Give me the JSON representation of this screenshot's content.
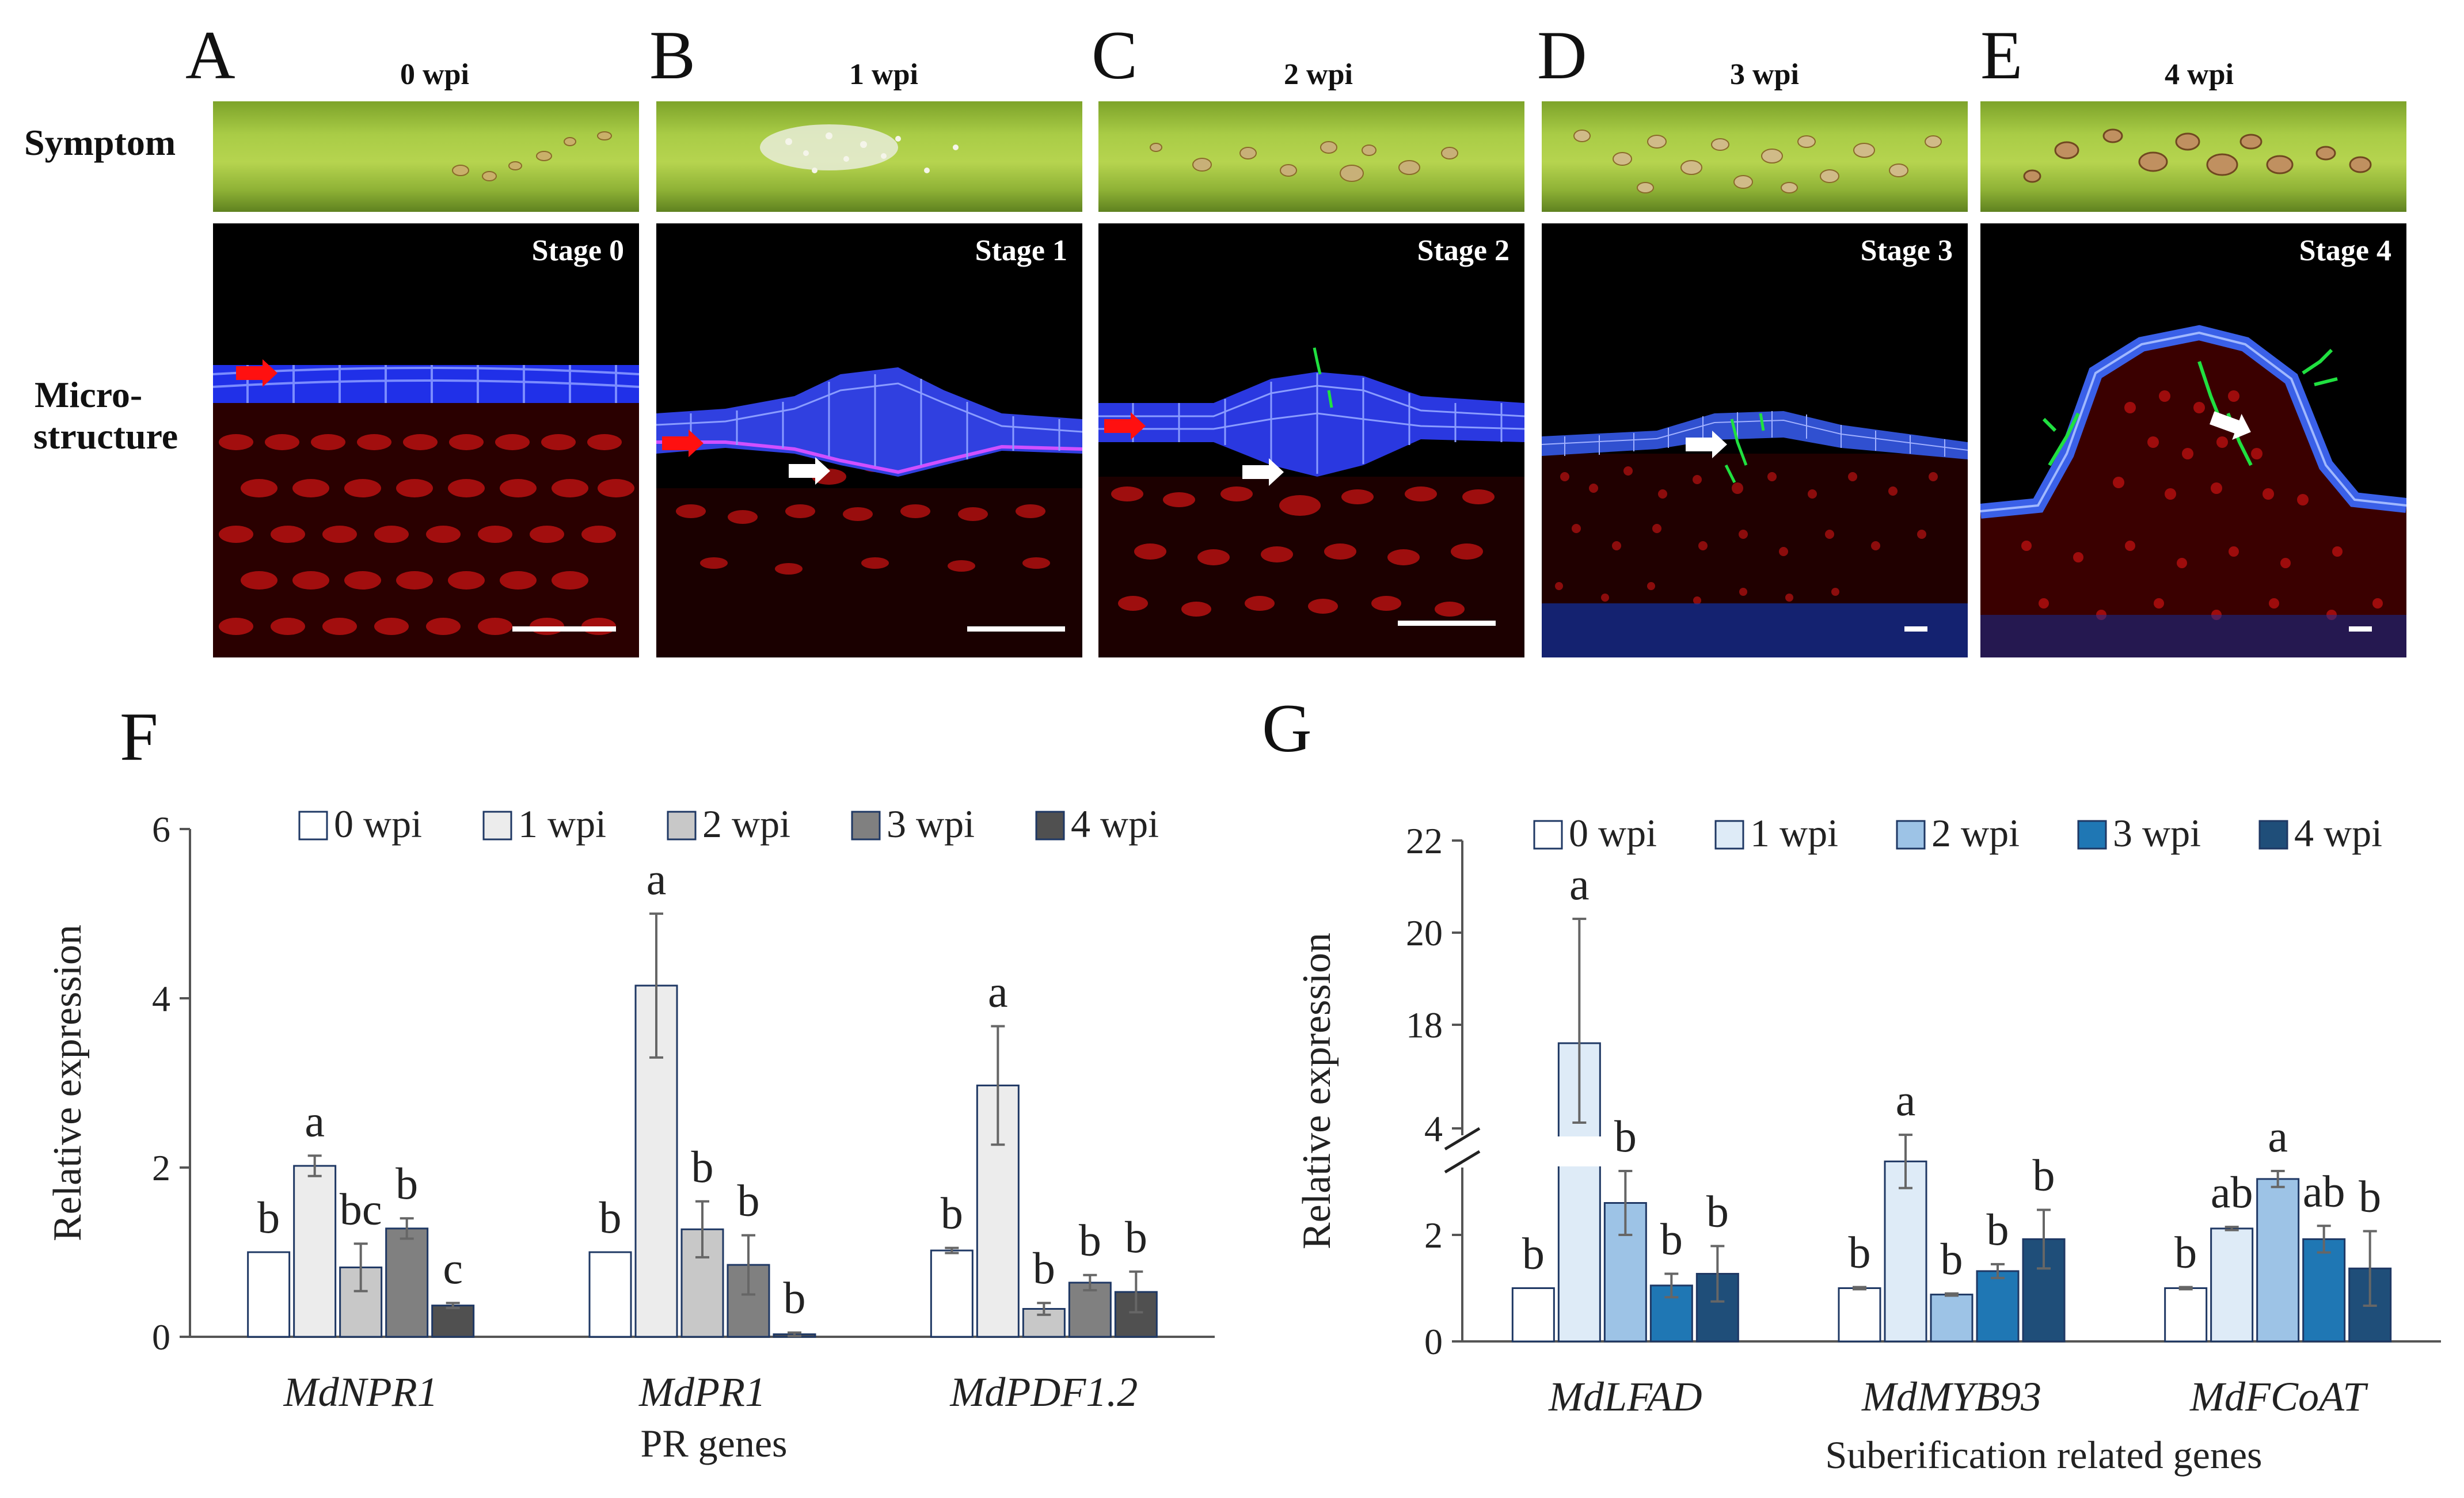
{
  "top": {
    "panels": [
      {
        "letter": "A",
        "time": "0 wpi",
        "stage": "Stage 0"
      },
      {
        "letter": "B",
        "time": "1 wpi",
        "stage": "Stage 1"
      },
      {
        "letter": "C",
        "time": "2 wpi",
        "stage": "Stage 2"
      },
      {
        "letter": "D",
        "time": "3 wpi",
        "stage": "Stage 3"
      },
      {
        "letter": "E",
        "time": "4 wpi",
        "stage": "Stage 4"
      }
    ],
    "row_labels": {
      "symptom": "Symptom",
      "micro_1": "Micro-",
      "micro_2": "structure"
    }
  },
  "colors": {
    "F_series": [
      "#ffffff",
      "#ececec",
      "#c8c8c8",
      "#808080",
      "#505050"
    ],
    "G_series": [
      "#ffffff",
      "#deebf7",
      "#9dc3e6",
      "#1f77b4",
      "#1f4e79"
    ],
    "outline": "#1f3864"
  },
  "chart_data": [
    {
      "panel": "F",
      "type": "bar",
      "ylabel": "Relative expression",
      "xlabel": "PR genes",
      "ylim": [
        0,
        6
      ],
      "yticks": [
        0,
        2,
        4,
        6
      ],
      "categories": [
        "MdNPR1",
        "MdPR1",
        "MdPDF1.2"
      ],
      "series": [
        {
          "name": "0 wpi",
          "values": [
            1.0,
            1.0,
            1.02
          ],
          "errors": [
            0.0,
            0.0,
            0.03
          ],
          "letters": [
            "b",
            "b",
            "b"
          ]
        },
        {
          "name": "1 wpi",
          "values": [
            2.02,
            4.15,
            2.97
          ],
          "errors": [
            0.12,
            0.85,
            0.7
          ],
          "letters": [
            "a",
            "a",
            "a"
          ]
        },
        {
          "name": "2 wpi",
          "values": [
            0.82,
            1.27,
            0.33
          ],
          "errors": [
            0.28,
            0.33,
            0.07
          ],
          "letters": [
            "bc",
            "b",
            "b"
          ]
        },
        {
          "name": "3 wpi",
          "values": [
            1.28,
            0.85,
            0.64
          ],
          "errors": [
            0.12,
            0.35,
            0.09
          ],
          "letters": [
            "b",
            "b",
            "b"
          ]
        },
        {
          "name": "4 wpi",
          "values": [
            0.37,
            0.03,
            0.53
          ],
          "errors": [
            0.03,
            0.02,
            0.24
          ],
          "letters": [
            "c",
            "b",
            "b"
          ]
        }
      ]
    },
    {
      "panel": "G",
      "type": "bar",
      "ylabel": "Relative expression",
      "xlabel": "Suberification related genes",
      "ylim": [
        0,
        22
      ],
      "axis_break": [
        4,
        16
      ],
      "yticks": [
        0,
        2,
        4,
        18,
        20,
        22
      ],
      "categories": [
        "MdLFAD",
        "MdMYB93",
        "MdFCoAT"
      ],
      "series": [
        {
          "name": "0 wpi",
          "values": [
            1.0,
            1.0,
            1.0
          ],
          "errors": [
            0.0,
            0.02,
            0.02
          ],
          "letters": [
            "b",
            "b",
            "b"
          ]
        },
        {
          "name": "1 wpi",
          "values": [
            17.6,
            3.38,
            2.12
          ],
          "errors": [
            2.7,
            0.5,
            0.03
          ],
          "letters": [
            "a",
            "a",
            "ab"
          ]
        },
        {
          "name": "2 wpi",
          "values": [
            2.6,
            0.88,
            3.05
          ],
          "errors": [
            0.6,
            0.02,
            0.15
          ],
          "letters": [
            "b",
            "b",
            "a"
          ]
        },
        {
          "name": "3 wpi",
          "values": [
            1.05,
            1.32,
            1.92
          ],
          "errors": [
            0.22,
            0.13,
            0.25
          ],
          "letters": [
            "b",
            "b",
            "ab"
          ]
        },
        {
          "name": "4 wpi",
          "values": [
            1.27,
            1.92,
            1.37
          ],
          "errors": [
            0.52,
            0.55,
            0.7
          ],
          "letters": [
            "b",
            "b",
            "b"
          ]
        }
      ]
    }
  ],
  "panel_labels": {
    "F": "F",
    "G": "G"
  }
}
